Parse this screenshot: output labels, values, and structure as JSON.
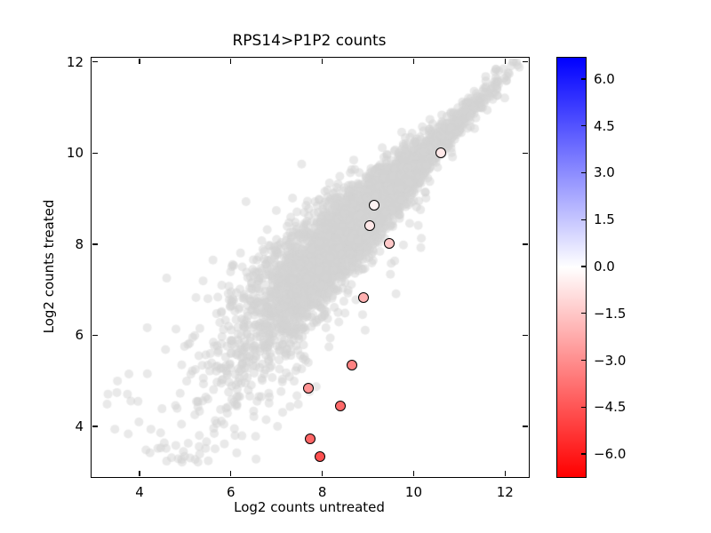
{
  "chart_data": {
    "type": "scatter",
    "title": "RPS14>P1P2 counts",
    "xlabel": "Log2 counts untreated",
    "ylabel": "Log2 counts treated",
    "xlim": [
      2.93,
      12.5
    ],
    "ylim": [
      2.91,
      12.11
    ],
    "xticks": [
      4,
      6,
      8,
      10,
      12
    ],
    "yticks": [
      4,
      6,
      8,
      10,
      12
    ],
    "grid": false,
    "marker_edge_color": "#000000",
    "colorbar": {
      "vmin": -6.71,
      "vmax": 6.71,
      "ticks": [
        6.0,
        4.5,
        3.0,
        1.5,
        0.0,
        -1.5,
        -3.0,
        -4.5,
        -6.0
      ],
      "tick_labels": [
        "6.0",
        "4.5",
        "3.0",
        "1.5",
        "0.0",
        "−1.5",
        "−3.0",
        "−4.5",
        "−6.0"
      ],
      "colormap": "bwr_r (blue high, white zero, red low)",
      "stops": {
        "top": "#0000ff",
        "mid": "#ffffff",
        "bottom": "#ff0000"
      }
    },
    "highlighted_points": [
      {
        "x": 10.6,
        "y": 10.0,
        "value": -0.6
      },
      {
        "x": 9.13,
        "y": 8.85,
        "value": -0.28
      },
      {
        "x": 9.04,
        "y": 8.4,
        "value": -0.64
      },
      {
        "x": 9.47,
        "y": 8.01,
        "value": -1.46
      },
      {
        "x": 8.9,
        "y": 6.83,
        "value": -2.07
      },
      {
        "x": 8.64,
        "y": 5.35,
        "value": -3.29
      },
      {
        "x": 7.69,
        "y": 4.84,
        "value": -2.85
      },
      {
        "x": 8.39,
        "y": 4.45,
        "value": -3.94
      },
      {
        "x": 7.74,
        "y": 3.72,
        "value": -4.02
      },
      {
        "x": 7.94,
        "y": 3.33,
        "value": -4.61
      }
    ],
    "background_cloud": {
      "description": "all other genes, unhighlighted, light gray semi-transparent markers along the diagonal",
      "color": "rgba(211,211,211,0.5)",
      "marker_radius": 5,
      "seed": 1337,
      "groups": [
        {
          "type": "band",
          "n": 3800,
          "x_mean": 8.8,
          "x_sd": 1.25,
          "x_min": 5.55,
          "x_max": 12.35,
          "y_offset": -0.27,
          "noise_base": 0.17,
          "noise_slope": 0.15,
          "noise_pivot": 10.6
        },
        {
          "type": "spread",
          "n": 230,
          "x_min": 3.1,
          "x_span": 4.5,
          "y_offset": -0.2,
          "y_sd": 1.3,
          "y_min": 3.15,
          "y_max": 8.0
        },
        {
          "type": "trail",
          "n": 110,
          "x_min": 6.9,
          "x_span": 3.4,
          "y_offset": -0.4,
          "depth": 2.6
        },
        {
          "type": "points",
          "pts": [
            [
              12.08,
              11.75
            ],
            [
              11.6,
              10.95
            ],
            [
              3.3,
              4.72
            ],
            [
              3.28,
              4.5
            ],
            [
              3.45,
              3.95
            ]
          ]
        }
      ]
    }
  }
}
